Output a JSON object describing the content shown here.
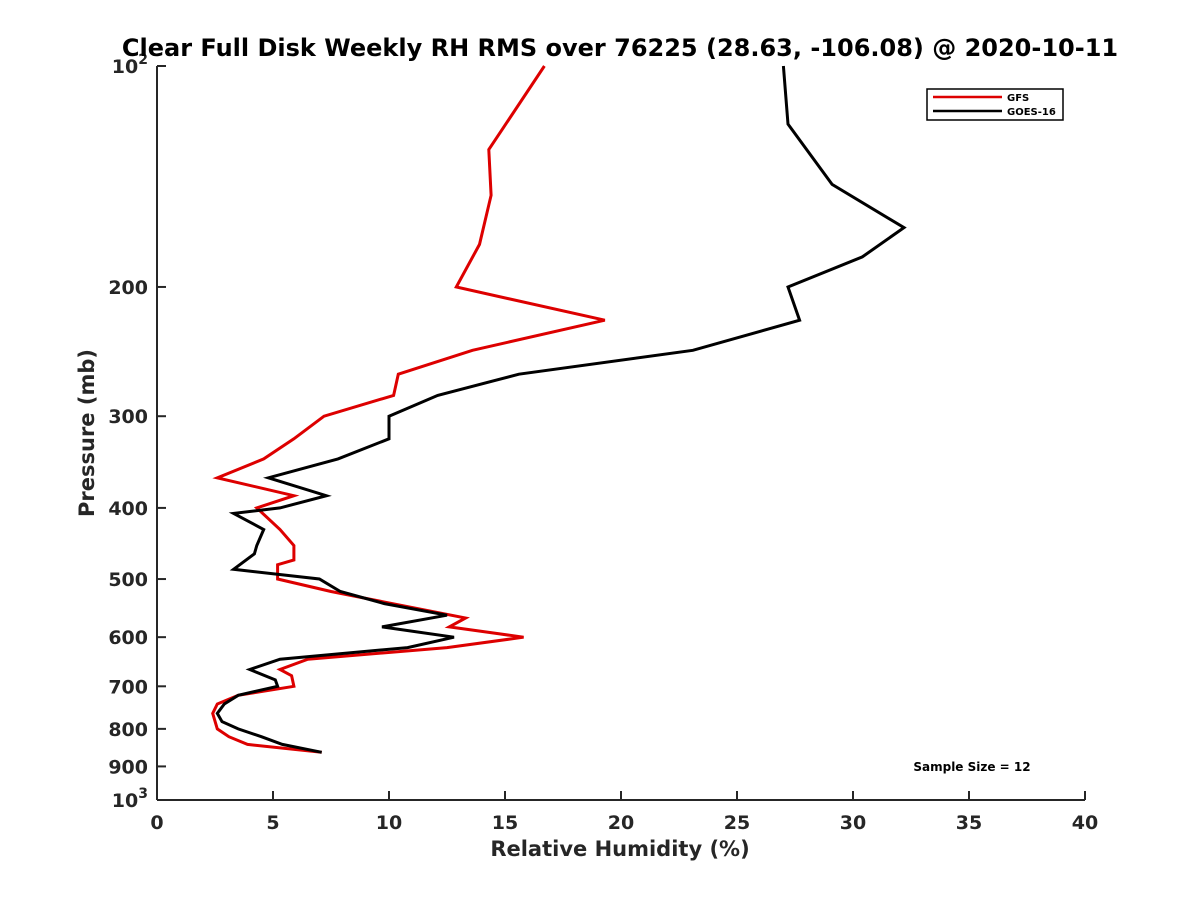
{
  "chart_data": {
    "type": "line",
    "title": "Clear Full Disk Weekly RH RMS over 76225 (28.63, -106.08) @ 2020-10-11",
    "xlabel": "Relative Humidity (%)",
    "ylabel": "Pressure (mb)",
    "xlim": [
      0,
      40
    ],
    "ylim": [
      100,
      1000
    ],
    "y_scale": "log",
    "y_reversed": true,
    "x_ticks": [
      "0",
      "5",
      "10",
      "15",
      "20",
      "25",
      "30",
      "35",
      "40"
    ],
    "y_tick_labels": [
      {
        "value": 100,
        "base": "10",
        "exp": "2"
      },
      {
        "value": 200,
        "text": "200"
      },
      {
        "value": 300,
        "text": "300"
      },
      {
        "value": 400,
        "text": "400"
      },
      {
        "value": 500,
        "text": "500"
      },
      {
        "value": 600,
        "text": "600"
      },
      {
        "value": 700,
        "text": "700"
      },
      {
        "value": 800,
        "text": "800"
      },
      {
        "value": 900,
        "text": "900"
      },
      {
        "value": 1000,
        "base": "10",
        "exp": "3"
      }
    ],
    "grid": false,
    "legend_position": "top-right",
    "annotation": "Sample Size = 12",
    "series": [
      {
        "name": "GFS",
        "color": "#dd0000",
        "points": [
          [
            16.7,
            100
          ],
          [
            14.3,
            130
          ],
          [
            14.4,
            150
          ],
          [
            13.9,
            175
          ],
          [
            12.9,
            200
          ],
          [
            19.3,
            222
          ],
          [
            13.6,
            244
          ],
          [
            10.4,
            263
          ],
          [
            10.2,
            281
          ],
          [
            7.2,
            300
          ],
          [
            5.9,
            322
          ],
          [
            4.6,
            343
          ],
          [
            2.6,
            364
          ],
          [
            5.9,
            385
          ],
          [
            4.3,
            400
          ],
          [
            5.3,
            428
          ],
          [
            5.9,
            450
          ],
          [
            5.9,
            471
          ],
          [
            5.2,
            478
          ],
          [
            5.2,
            500
          ],
          [
            7.5,
            520
          ],
          [
            13.3,
            565
          ],
          [
            12.6,
            581
          ],
          [
            15.8,
            600
          ],
          [
            12.5,
            620
          ],
          [
            6.5,
            643
          ],
          [
            5.3,
            664
          ],
          [
            5.8,
            677
          ],
          [
            5.9,
            700
          ],
          [
            3.5,
            720
          ],
          [
            2.6,
            740
          ],
          [
            2.4,
            762
          ],
          [
            2.6,
            800
          ],
          [
            3.1,
            820
          ],
          [
            3.9,
            840
          ],
          [
            7.1,
            861
          ]
        ]
      },
      {
        "name": "GOES-16",
        "color": "#000000",
        "points": [
          [
            27.0,
            100
          ],
          [
            27.2,
            120
          ],
          [
            29.1,
            145
          ],
          [
            32.2,
            166
          ],
          [
            30.4,
            182
          ],
          [
            27.2,
            200
          ],
          [
            27.7,
            222
          ],
          [
            23.1,
            244
          ],
          [
            15.6,
            263
          ],
          [
            12.1,
            281
          ],
          [
            10.0,
            300
          ],
          [
            10.0,
            322
          ],
          [
            7.8,
            343
          ],
          [
            4.8,
            364
          ],
          [
            7.3,
            385
          ],
          [
            5.3,
            400
          ],
          [
            3.3,
            407
          ],
          [
            4.6,
            428
          ],
          [
            4.3,
            450
          ],
          [
            4.2,
            462
          ],
          [
            3.3,
            485
          ],
          [
            7.0,
            500
          ],
          [
            7.9,
            520
          ],
          [
            9.8,
            540
          ],
          [
            12.5,
            560
          ],
          [
            9.7,
            581
          ],
          [
            12.8,
            600
          ],
          [
            10.8,
            620
          ],
          [
            5.3,
            643
          ],
          [
            4.0,
            664
          ],
          [
            5.1,
            686
          ],
          [
            5.2,
            700
          ],
          [
            3.5,
            720
          ],
          [
            2.9,
            740
          ],
          [
            2.6,
            762
          ],
          [
            2.8,
            782
          ],
          [
            3.5,
            800
          ],
          [
            4.5,
            820
          ],
          [
            5.4,
            840
          ],
          [
            7.1,
            861
          ]
        ]
      }
    ]
  }
}
